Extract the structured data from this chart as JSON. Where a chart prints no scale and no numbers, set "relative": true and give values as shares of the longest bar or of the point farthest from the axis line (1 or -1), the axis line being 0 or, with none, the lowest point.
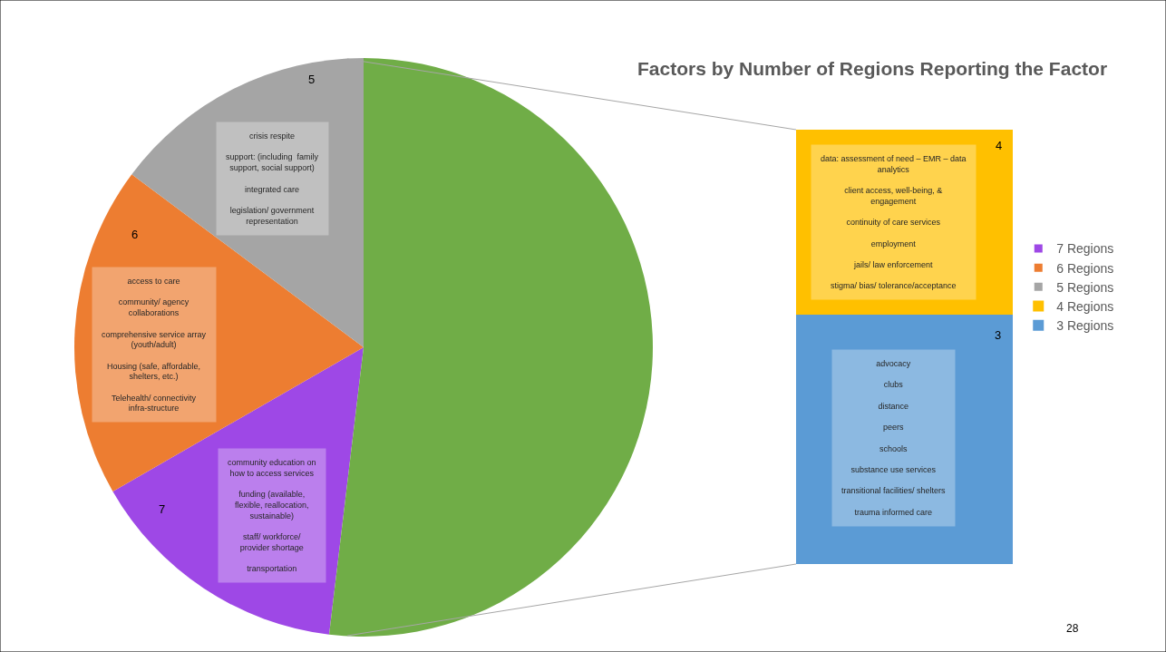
{
  "chart_data": [
    {
      "type": "pie",
      "title": "Factors by Number of Regions Reporting the Factor",
      "categories": [
        "7 Regions",
        "6 Regions",
        "5 Regions",
        null
      ],
      "values": [
        14.8,
        18.5,
        14.8,
        51.9
      ],
      "colors": [
        "#9e48e6",
        "#ed7d31",
        "#a5a5a5",
        "#70ad47"
      ],
      "legend": "right",
      "annotations": [
        "7",
        "6",
        "5",
        "community education on\nhow to access services\n\nfunding (available,\nflexible, reallocation,\nsustainable)\n\nstaff/ workforce/\nprovider shortage\n\ntransportation",
        "access to care\n\ncommunity/ agency\ncollaborations\n\ncomprehensive service array\n(youth/adult)\n\nHousing (safe, affordable,\nshelters, etc.)\n\nTelehealth/ connectivity\ninfra-structure",
        "crisis respite\n\nsupport: (including  family\nsupport, social support)\n\nintegrated care\n\nlegislation/ government\nrepresentation"
      ]
    },
    {
      "type": "bar",
      "stacked": true,
      "relative": true,
      "categories": [
        null
      ],
      "legend": "right",
      "series": [
        {
          "name": "3 Regions",
          "color": "#5b9bd5",
          "values": [
            0.574
          ]
        },
        {
          "name": "4 Regions",
          "color": "#ffc000",
          "values": [
            0.426
          ]
        }
      ],
      "annotations": [
        "4",
        "3",
        "data: assessment of need – EMR – data\nanalytics\n\nclient access, well-being, &\nengagement\n\ncontinuity of care services\n\nemployment\n\njails/ law enforcement\n\nstigma/ bias/ tolerance/acceptance",
        "advocacy\n\nclubs\n\ndistance\n\npeers\n\nschools\n\nsubstance use services\n\ntransitional facilities/ shelters\n\ntrauma informed care",
        "28"
      ]
    }
  ]
}
